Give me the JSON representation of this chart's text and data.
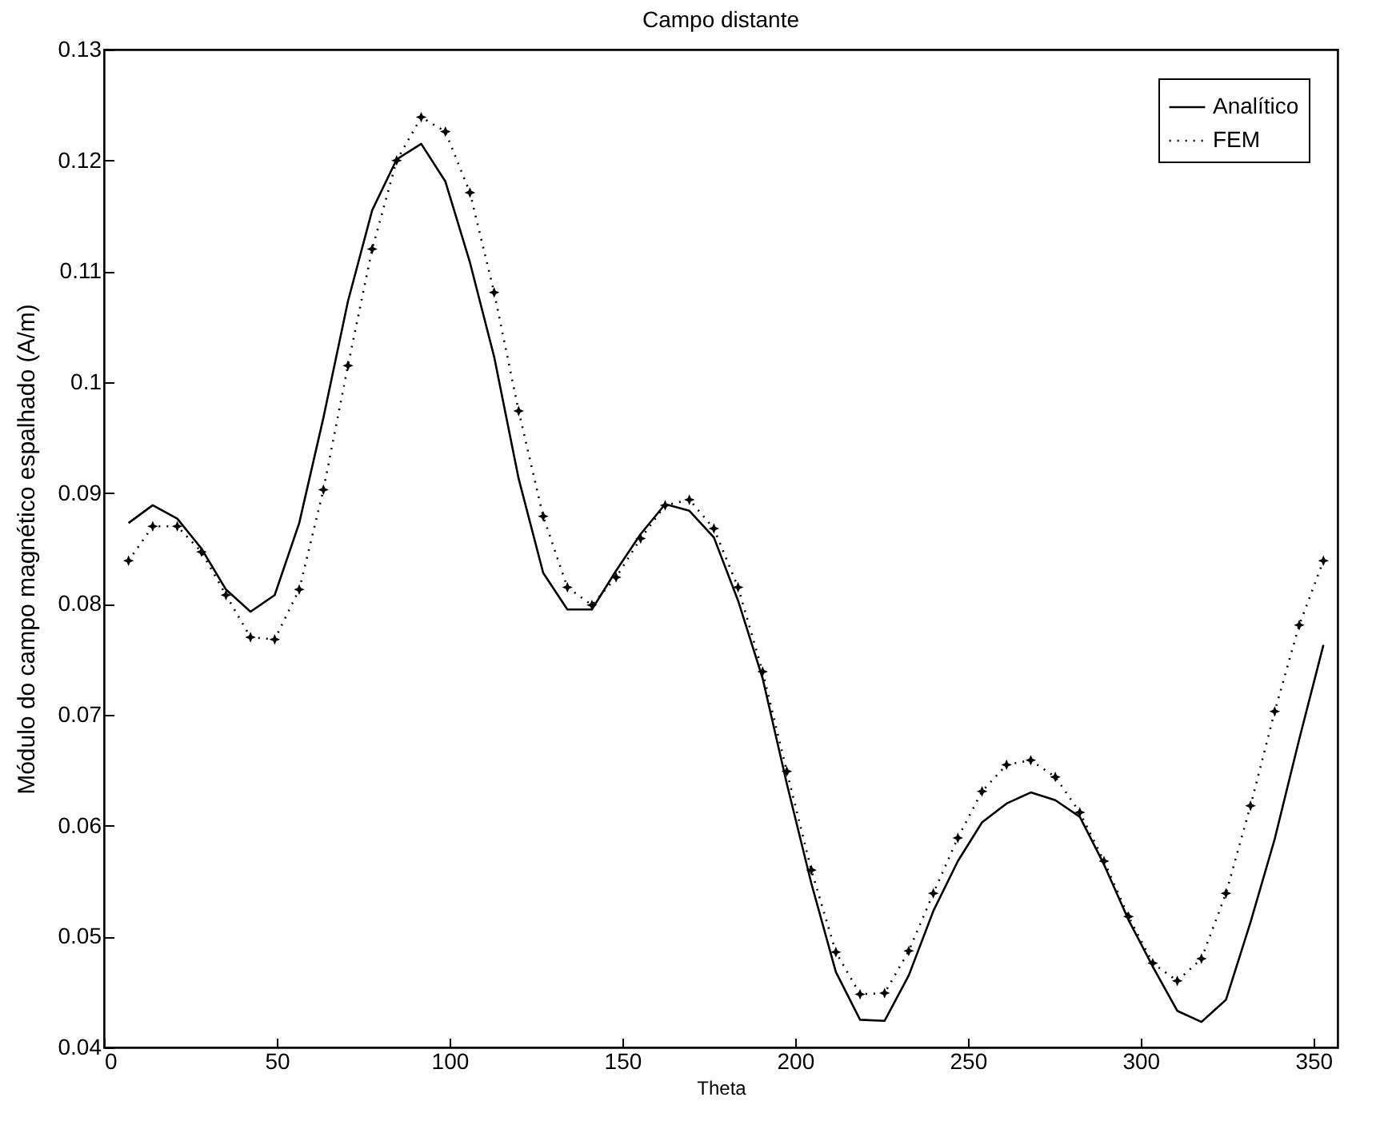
{
  "chart_data": {
    "type": "line",
    "title": "Campo distante",
    "xlabel": "Theta",
    "ylabel": "Módulo do campo magnético espalhado (A/m)",
    "x": [
      7.1,
      14.1,
      21.2,
      28.2,
      35.3,
      42.4,
      49.4,
      56.5,
      63.5,
      70.6,
      77.6,
      84.7,
      91.8,
      98.8,
      105.9,
      112.9,
      120,
      127.1,
      134.1,
      141.2,
      148.2,
      155.3,
      162.4,
      169.4,
      176.5,
      183.5,
      190.6,
      197.6,
      204.7,
      211.8,
      218.8,
      225.9,
      232.9,
      240,
      247.1,
      254.1,
      261.2,
      268.2,
      275.3,
      282.4,
      289.4,
      296.5,
      303.5,
      310.6,
      317.6,
      324.7,
      331.8,
      338.8,
      345.9,
      352.9
    ],
    "series": [
      {
        "name": "Analítico",
        "color": "#000000",
        "line_style": "solid",
        "marker": "none",
        "values": [
          0.0873,
          0.0889,
          0.0877,
          0.085,
          0.0813,
          0.0793,
          0.0808,
          0.0873,
          0.0968,
          0.1073,
          0.1155,
          0.1201,
          0.1215,
          0.1181,
          0.1108,
          0.1023,
          0.0913,
          0.0828,
          0.0795,
          0.0795,
          0.083,
          0.0863,
          0.089,
          0.0884,
          0.086,
          0.0803,
          0.0733,
          0.0638,
          0.0548,
          0.0468,
          0.0425,
          0.0424,
          0.0465,
          0.0523,
          0.0568,
          0.0603,
          0.062,
          0.063,
          0.0623,
          0.0608,
          0.0565,
          0.0515,
          0.0473,
          0.0433,
          0.0423,
          0.0443,
          0.0513,
          0.0588,
          0.0678,
          0.0763
        ]
      },
      {
        "name": "FEM",
        "color": "#000000",
        "line_style": "dotted",
        "marker": "star",
        "values": [
          0.0839,
          0.087,
          0.087,
          0.0847,
          0.0808,
          0.077,
          0.0768,
          0.0813,
          0.0903,
          0.1015,
          0.112,
          0.12,
          0.1239,
          0.1226,
          0.1171,
          0.1081,
          0.0974,
          0.0879,
          0.0815,
          0.0799,
          0.0824,
          0.0859,
          0.0889,
          0.0894,
          0.0868,
          0.0815,
          0.0739,
          0.0649,
          0.056,
          0.0486,
          0.0448,
          0.0449,
          0.0487,
          0.0539,
          0.0589,
          0.0631,
          0.0655,
          0.0659,
          0.0644,
          0.0612,
          0.0568,
          0.0518,
          0.0476,
          0.046,
          0.048,
          0.0539,
          0.0618,
          0.0703,
          0.0781,
          0.0839
        ]
      }
    ],
    "xlim": [
      0,
      357
    ],
    "xticks": [
      0,
      50,
      100,
      150,
      200,
      250,
      300,
      350
    ],
    "ylim": [
      0.04,
      0.13
    ],
    "yticks": [
      0.04,
      0.05,
      0.06,
      0.07,
      0.08,
      0.09,
      0.1,
      0.11,
      0.12,
      0.13
    ],
    "legend": "top right",
    "grid": false
  }
}
